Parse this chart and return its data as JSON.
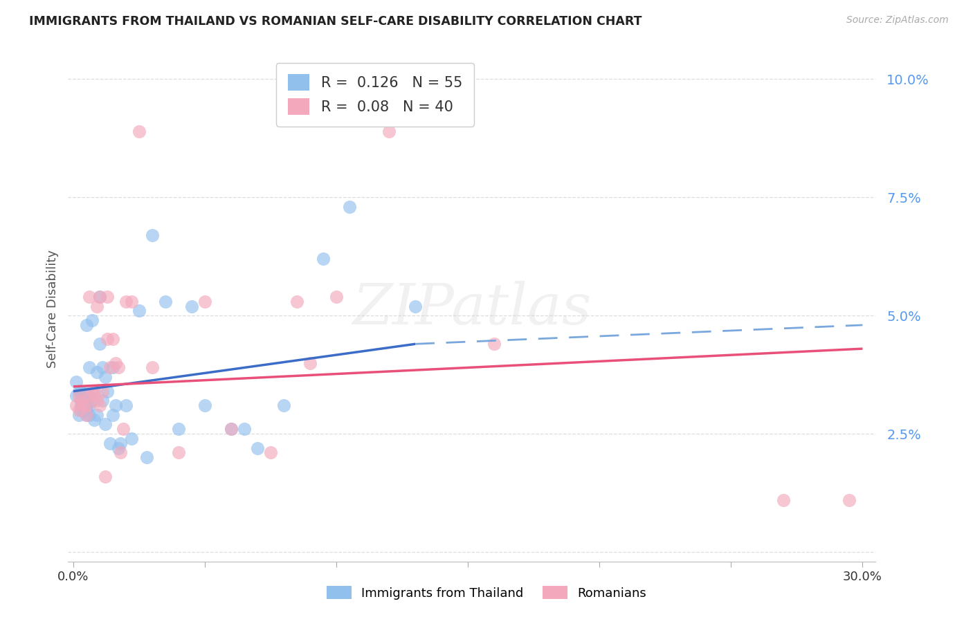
{
  "title": "IMMIGRANTS FROM THAILAND VS ROMANIAN SELF-CARE DISABILITY CORRELATION CHART",
  "source": "Source: ZipAtlas.com",
  "ylabel": "Self-Care Disability",
  "xlim": [
    -0.002,
    0.305
  ],
  "ylim": [
    -0.002,
    0.105
  ],
  "xticks": [
    0.0,
    0.05,
    0.1,
    0.15,
    0.2,
    0.25,
    0.3
  ],
  "ytick_vals": [
    0.0,
    0.025,
    0.05,
    0.075,
    0.1
  ],
  "yticklabels": [
    "",
    "2.5%",
    "5.0%",
    "7.5%",
    "10.0%"
  ],
  "R_thailand": 0.126,
  "N_thailand": 55,
  "R_romanian": 0.08,
  "N_romanian": 40,
  "blue_color": "#92C0ED",
  "pink_color": "#F4A8BC",
  "trend_blue_solid": "#3B6CC7",
  "trend_blue_dash": "#7AA8DD",
  "trend_pink": "#E8507A",
  "grid_color": "#DDDDDD",
  "title_color": "#222222",
  "ytick_color": "#5599EE",
  "xtick_color": "#333333",
  "thailand_x": [
    0.001,
    0.001,
    0.002,
    0.002,
    0.003,
    0.003,
    0.003,
    0.003,
    0.004,
    0.004,
    0.004,
    0.005,
    0.005,
    0.005,
    0.005,
    0.005,
    0.006,
    0.006,
    0.006,
    0.006,
    0.007,
    0.007,
    0.008,
    0.008,
    0.009,
    0.009,
    0.01,
    0.01,
    0.011,
    0.011,
    0.012,
    0.012,
    0.013,
    0.014,
    0.015,
    0.015,
    0.016,
    0.017,
    0.018,
    0.02,
    0.022,
    0.025,
    0.028,
    0.03,
    0.035,
    0.04,
    0.045,
    0.05,
    0.06,
    0.065,
    0.07,
    0.08,
    0.095,
    0.105,
    0.13
  ],
  "thailand_y": [
    0.033,
    0.036,
    0.029,
    0.034,
    0.03,
    0.031,
    0.032,
    0.034,
    0.03,
    0.032,
    0.034,
    0.029,
    0.03,
    0.031,
    0.032,
    0.048,
    0.029,
    0.031,
    0.033,
    0.039,
    0.032,
    0.049,
    0.028,
    0.034,
    0.029,
    0.038,
    0.044,
    0.054,
    0.032,
    0.039,
    0.027,
    0.037,
    0.034,
    0.023,
    0.029,
    0.039,
    0.031,
    0.022,
    0.023,
    0.031,
    0.024,
    0.051,
    0.02,
    0.067,
    0.053,
    0.026,
    0.052,
    0.031,
    0.026,
    0.026,
    0.022,
    0.031,
    0.062,
    0.073,
    0.052
  ],
  "romanian_x": [
    0.001,
    0.002,
    0.002,
    0.003,
    0.004,
    0.005,
    0.005,
    0.006,
    0.006,
    0.007,
    0.008,
    0.009,
    0.009,
    0.01,
    0.01,
    0.011,
    0.012,
    0.013,
    0.013,
    0.014,
    0.015,
    0.016,
    0.017,
    0.018,
    0.019,
    0.02,
    0.022,
    0.025,
    0.03,
    0.04,
    0.05,
    0.06,
    0.075,
    0.085,
    0.09,
    0.1,
    0.12,
    0.16,
    0.27,
    0.295
  ],
  "romanian_y": [
    0.031,
    0.03,
    0.033,
    0.032,
    0.031,
    0.029,
    0.031,
    0.033,
    0.054,
    0.034,
    0.033,
    0.032,
    0.052,
    0.031,
    0.054,
    0.034,
    0.016,
    0.045,
    0.054,
    0.039,
    0.045,
    0.04,
    0.039,
    0.021,
    0.026,
    0.053,
    0.053,
    0.089,
    0.039,
    0.021,
    0.053,
    0.026,
    0.021,
    0.053,
    0.04,
    0.054,
    0.089,
    0.044,
    0.011,
    0.011
  ],
  "trend_blue_start_x": 0.0,
  "trend_blue_end_x": 0.13,
  "trend_blue_dash_end_x": 0.3,
  "trend_blue_start_y": 0.034,
  "trend_blue_end_y": 0.044,
  "trend_blue_dash_end_y": 0.048,
  "trend_pink_start_x": 0.0,
  "trend_pink_end_x": 0.3,
  "trend_pink_start_y": 0.035,
  "trend_pink_end_y": 0.043
}
